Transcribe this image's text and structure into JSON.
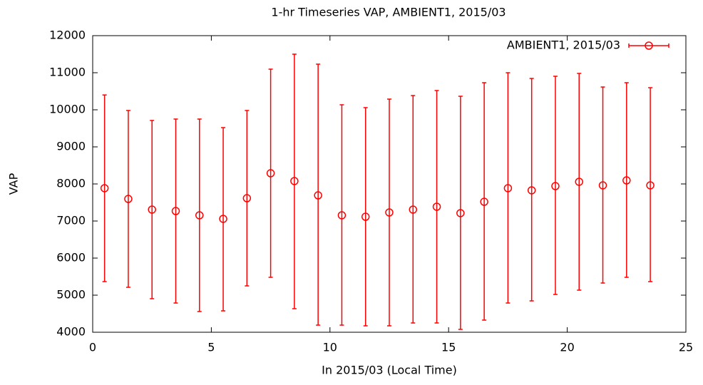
{
  "chart_data": {
    "type": "errorbar",
    "title": "1-hr Timeseries VAP, AMBIENT1, 2015/03",
    "x_label": "In 2015/03 (Local Time)",
    "y_label": "VAP",
    "xlim": [
      0,
      25
    ],
    "xticks": [
      0,
      5,
      10,
      15,
      20,
      25
    ],
    "ylim": [
      4000,
      12000
    ],
    "yticks": [
      4000,
      5000,
      6000,
      7000,
      8000,
      9000,
      10000,
      11000,
      12000
    ],
    "grid": false,
    "legend_position": "top-right",
    "series": [
      {
        "name": "AMBIENT1, 2015/03",
        "color": "#ff0000",
        "x": [
          0.5,
          1.5,
          2.5,
          3.5,
          4.5,
          5.5,
          6.5,
          7.5,
          8.5,
          9.5,
          10.5,
          11.5,
          12.5,
          13.5,
          14.5,
          15.5,
          16.5,
          17.5,
          18.5,
          19.5,
          20.5,
          21.5,
          22.5,
          23.5
        ],
        "values": [
          7885,
          7596,
          7308,
          7269,
          7154,
          7058,
          7615,
          8288,
          8077,
          7692,
          7154,
          7115,
          7231,
          7308,
          7385,
          7212,
          7519,
          7885,
          7827,
          7942,
          8058,
          7962,
          8096,
          7962
        ],
        "low": [
          5365,
          5212,
          4904,
          4788,
          4558,
          4577,
          5250,
          5481,
          4635,
          4192,
          4192,
          4173,
          4173,
          4250,
          4250,
          4077,
          4327,
          4788,
          4846,
          5019,
          5135,
          5327,
          5481,
          5365
        ],
        "high": [
          10400,
          9981,
          9712,
          9750,
          9750,
          9519,
          9981,
          11096,
          11500,
          11231,
          10135,
          10058,
          10288,
          10385,
          10519,
          10365,
          10731,
          11000,
          10846,
          10904,
          10981,
          10615,
          10731,
          10596
        ]
      }
    ]
  }
}
